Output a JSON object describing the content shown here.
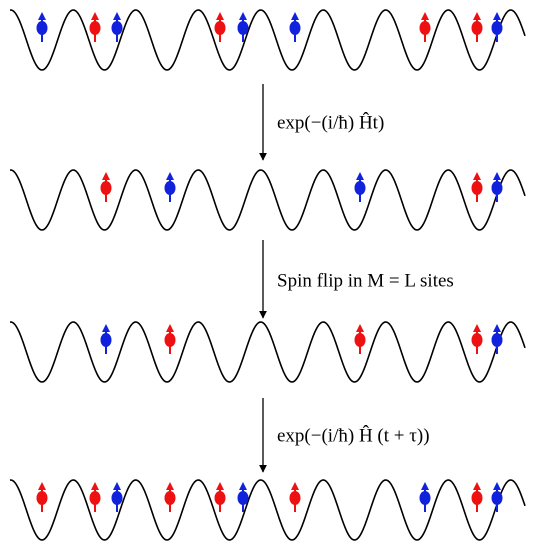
{
  "steps": [
    {
      "label": "exp(−(i/ħ) Ĥt)"
    },
    {
      "label": "Spin flip in M = L sites"
    },
    {
      "label": "exp(−(i/ħ) Ĥ (t + τ))"
    }
  ]
}
